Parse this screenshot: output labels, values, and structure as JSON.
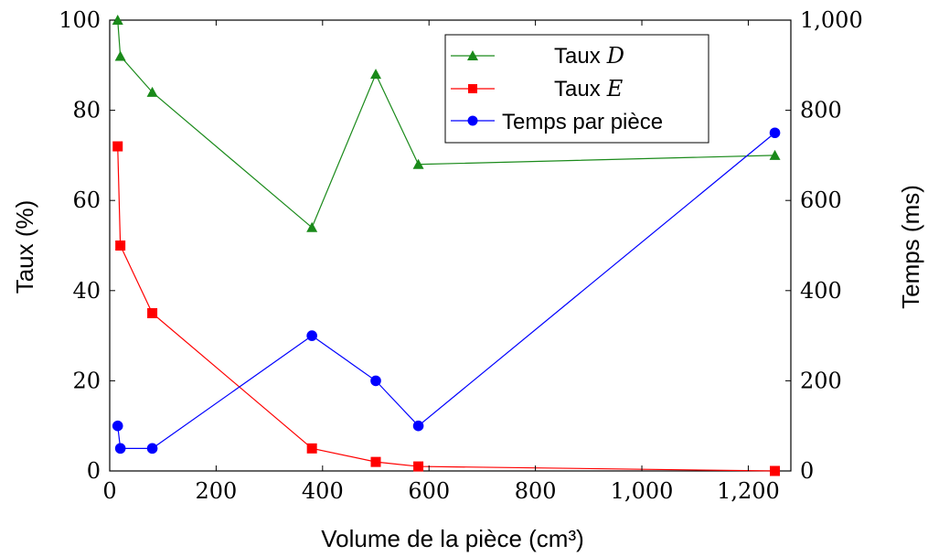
{
  "chart_data": {
    "type": "line",
    "x": [
      15,
      20,
      80,
      380,
      500,
      580,
      1250
    ],
    "xlabel": "Volume de la pièce (cm³)",
    "ylabel_left": "Taux (%)",
    "ylabel_right": "Temps (ms)",
    "xlim": [
      0,
      1280
    ],
    "ylim_left": [
      0,
      100
    ],
    "ylim_right": [
      0,
      1000
    ],
    "x_ticks": [
      0,
      200,
      400,
      600,
      800,
      1000,
      1200
    ],
    "x_tick_labels": [
      "0",
      "200",
      "400",
      "600",
      "800",
      "1,000",
      "1,200"
    ],
    "y_left_ticks": [
      0,
      20,
      40,
      60,
      80,
      100
    ],
    "y_left_tick_labels": [
      "0",
      "20",
      "40",
      "60",
      "80",
      "100"
    ],
    "y_right_ticks": [
      0,
      200,
      400,
      600,
      800,
      1000
    ],
    "y_right_tick_labels": [
      "0",
      "200",
      "400",
      "600",
      "800",
      "1,000"
    ],
    "grid": false,
    "legend_position": "top-right",
    "series": [
      {
        "name": "Taux",
        "name_var": "D",
        "axis": "left",
        "marker": "triangle",
        "color": "#1a8a1a",
        "values": [
          100,
          92,
          84,
          54,
          88,
          68,
          70
        ]
      },
      {
        "name": "Taux",
        "name_var": "E",
        "axis": "left",
        "marker": "square",
        "color": "#ff0000",
        "values": [
          72,
          50,
          35,
          5,
          2,
          1,
          0
        ]
      },
      {
        "name": "Temps par pièce",
        "axis": "right",
        "marker": "circle",
        "color": "#0000ff",
        "values": [
          100,
          50,
          50,
          300,
          200,
          100,
          750
        ]
      }
    ]
  }
}
